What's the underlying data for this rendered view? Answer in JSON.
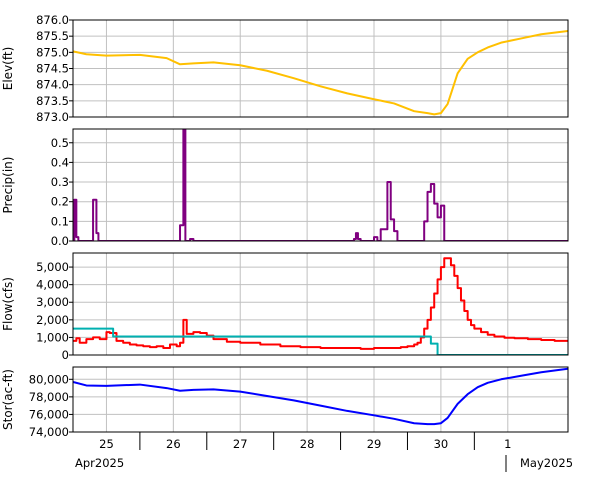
{
  "colors": {
    "elevation": "#ffc000",
    "precipitation": "#800080",
    "flow_outflow": "#ff0000",
    "flow_inflow": "#00b0b0",
    "storage": "#0000ff",
    "grid": "#c0c0c0"
  },
  "chart_data": [
    {
      "type": "line",
      "ylabel": "Elev(ft)",
      "ylim": [
        873.0,
        876.0
      ],
      "yticks": [
        873.0,
        873.5,
        874.0,
        874.5,
        875.0,
        875.5,
        876.0
      ],
      "ytick_labels": [
        "873.0",
        "873.5",
        "874.0",
        "874.5",
        "875.0",
        "875.5",
        "876.0"
      ],
      "series": [
        {
          "color": "elevation",
          "x": [
            24.5,
            24.7,
            25.0,
            25.5,
            25.9,
            26.1,
            26.3,
            26.6,
            27.0,
            27.4,
            27.8,
            28.2,
            28.6,
            29.0,
            29.3,
            29.6,
            29.8,
            29.9,
            30.0,
            30.1,
            30.25,
            30.4,
            30.55,
            30.7,
            30.9,
            31.2,
            31.5,
            31.9
          ],
          "y": [
            875.03,
            874.94,
            874.9,
            874.92,
            874.82,
            874.63,
            874.66,
            874.69,
            874.6,
            874.43,
            874.2,
            873.95,
            873.73,
            873.55,
            873.42,
            873.18,
            873.12,
            873.08,
            873.12,
            873.4,
            874.35,
            874.8,
            875.0,
            875.15,
            875.3,
            875.43,
            875.56,
            875.66
          ]
        }
      ],
      "grid": true
    },
    {
      "type": "step",
      "ylabel": "Precip(in)",
      "ylim": [
        0,
        0.57
      ],
      "yticks": [
        0.0,
        0.1,
        0.2,
        0.3,
        0.4,
        0.5
      ],
      "ytick_labels": [
        "0.0",
        "0.1",
        "0.2",
        "0.3",
        "0.4",
        "0.5"
      ],
      "series": [
        {
          "color": "precipitation",
          "x": [
            24.5,
            24.52,
            24.55,
            24.58,
            24.62,
            24.8,
            24.85,
            24.88,
            24.92,
            26.1,
            26.15,
            26.18,
            26.21,
            26.25,
            26.3,
            26.35,
            26.4,
            28.7,
            28.73,
            28.76,
            28.8,
            29.0,
            29.05,
            29.1,
            29.2,
            29.25,
            29.3,
            29.35,
            29.4,
            29.75,
            29.8,
            29.85,
            29.9,
            29.95,
            30.0,
            30.05
          ],
          "y": [
            0.0,
            0.21,
            0.02,
            0.0,
            0.0,
            0.21,
            0.04,
            0.0,
            0.0,
            0.08,
            0.57,
            0.0,
            0.0,
            0.01,
            0.0,
            0.0,
            0.0,
            0.01,
            0.04,
            0.01,
            0.0,
            0.02,
            0.0,
            0.06,
            0.3,
            0.11,
            0.05,
            0.0,
            0.0,
            0.1,
            0.25,
            0.29,
            0.19,
            0.12,
            0.18,
            0.0
          ]
        }
      ],
      "grid": true
    },
    {
      "type": "step",
      "ylabel": "Flow(cfs)",
      "ylim": [
        0,
        5800
      ],
      "yticks": [
        0,
        1000,
        2000,
        3000,
        4000,
        5000
      ],
      "ytick_labels": [
        "0",
        "1,000",
        "2,000",
        "3,000",
        "4,000",
        "5,000"
      ],
      "series": [
        {
          "name": "",
          "color": "flow_outflow",
          "x": [
            24.5,
            24.55,
            24.6,
            24.7,
            24.8,
            24.9,
            25.0,
            25.05,
            25.15,
            25.25,
            25.35,
            25.45,
            25.55,
            25.65,
            25.75,
            25.85,
            25.95,
            26.05,
            26.1,
            26.15,
            26.2,
            26.3,
            26.4,
            26.5,
            26.6,
            26.8,
            27.0,
            27.3,
            27.6,
            27.9,
            28.2,
            28.5,
            28.8,
            29.0,
            29.2,
            29.4,
            29.5,
            29.6,
            29.65,
            29.7,
            29.75,
            29.8,
            29.85,
            29.9,
            29.95,
            30.0,
            30.05,
            30.1,
            30.15,
            30.2,
            30.25,
            30.3,
            30.35,
            30.4,
            30.45,
            30.5,
            30.6,
            30.7,
            30.8,
            30.95,
            31.1,
            31.3,
            31.5,
            31.7,
            31.9
          ],
          "y": [
            800,
            950,
            700,
            900,
            1000,
            900,
            1300,
            1250,
            800,
            700,
            600,
            550,
            500,
            450,
            500,
            400,
            600,
            500,
            700,
            2000,
            1200,
            1300,
            1250,
            1100,
            900,
            750,
            700,
            600,
            500,
            450,
            400,
            400,
            350,
            400,
            400,
            450,
            500,
            600,
            700,
            1000,
            1500,
            2000,
            2700,
            3500,
            4300,
            5000,
            5500,
            5500,
            5100,
            4500,
            3800,
            3100,
            2500,
            2000,
            1700,
            1500,
            1300,
            1150,
            1050,
            980,
            950,
            900,
            850,
            800,
            850
          ]
        },
        {
          "name": "",
          "color": "flow_inflow",
          "x": [
            24.5,
            24.7,
            25.1,
            25.5,
            26.0,
            26.5,
            27.0,
            27.5,
            28.0,
            28.5,
            29.0,
            29.5,
            29.75,
            29.85,
            29.95,
            30.5,
            31.0,
            31.5,
            31.9
          ],
          "y": [
            1500,
            1500,
            1050,
            1050,
            1050,
            1050,
            1050,
            1050,
            1050,
            1050,
            1050,
            1050,
            1050,
            650,
            0,
            0,
            0,
            0,
            0
          ]
        }
      ],
      "grid": true
    },
    {
      "type": "line",
      "ylabel": "Stor(ac-ft)",
      "ylim": [
        74000,
        81400
      ],
      "yticks": [
        74000,
        76000,
        78000,
        80000
      ],
      "ytick_labels": [
        "74,000",
        "76,000",
        "78,000",
        "80,000"
      ],
      "series": [
        {
          "color": "storage",
          "x": [
            24.5,
            24.7,
            25.0,
            25.5,
            25.9,
            26.1,
            26.3,
            26.6,
            27.0,
            27.4,
            27.8,
            28.2,
            28.6,
            29.0,
            29.3,
            29.6,
            29.8,
            29.9,
            30.0,
            30.1,
            30.25,
            30.4,
            30.55,
            30.7,
            30.9,
            31.2,
            31.5,
            31.9
          ],
          "y": [
            79700,
            79300,
            79250,
            79400,
            79000,
            78700,
            78800,
            78850,
            78600,
            78100,
            77600,
            77000,
            76400,
            75900,
            75500,
            75000,
            74900,
            74900,
            75000,
            75600,
            77200,
            78300,
            79100,
            79600,
            80000,
            80400,
            80800,
            81200
          ]
        }
      ],
      "grid": true
    }
  ],
  "x_axis": {
    "day_ticks": [
      25,
      26,
      27,
      28,
      29,
      30,
      31
    ],
    "day_labels": [
      "25",
      "26",
      "27",
      "28",
      "29",
      "30",
      "1"
    ],
    "month_labels": [
      "Apr2025",
      "May2025"
    ]
  }
}
